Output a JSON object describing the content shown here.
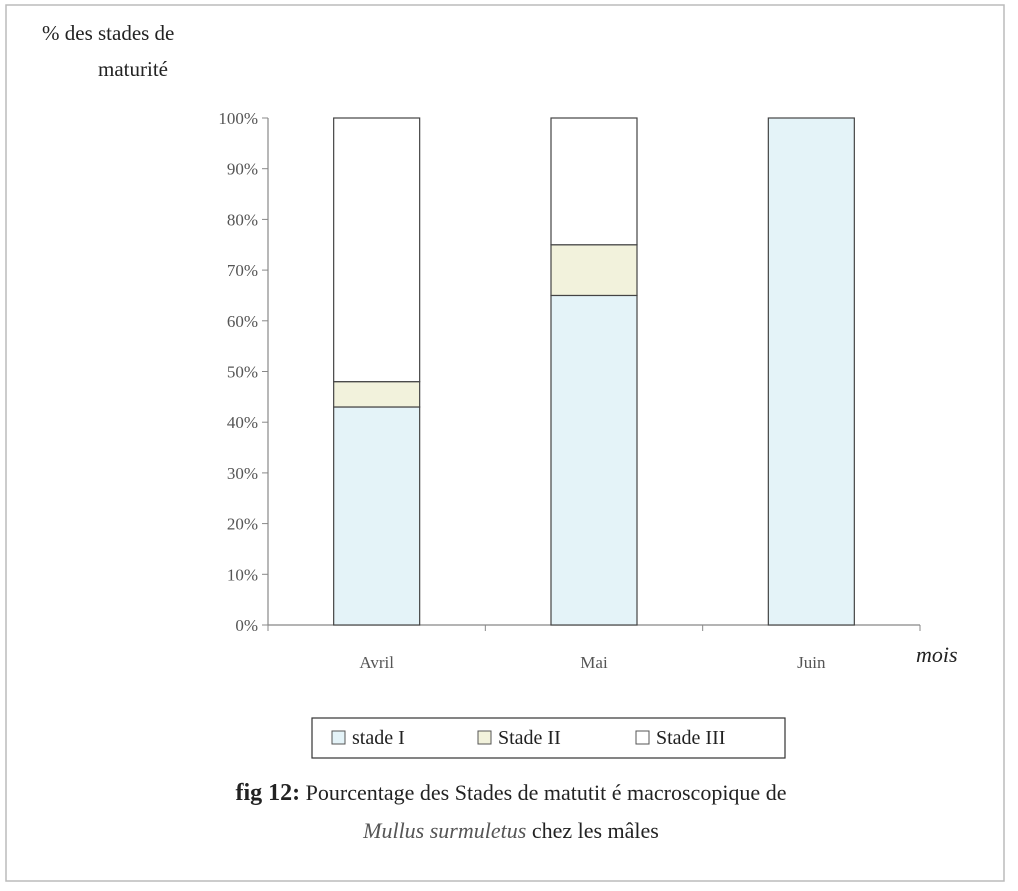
{
  "chart_data": {
    "type": "stacked_bar",
    "ylabel": [
      "% des stades de",
      "maturité"
    ],
    "xlabel": "mois",
    "categories": [
      "Avril",
      "Mai",
      "Juin"
    ],
    "series": [
      {
        "name": "stade I",
        "color": "#e4f3f8",
        "values": [
          43,
          65,
          100
        ]
      },
      {
        "name": "Stade II",
        "color": "#f2f2dc",
        "values": [
          5,
          10,
          0
        ]
      },
      {
        "name": "Stade III",
        "color": "#ffffff",
        "values": [
          52,
          25,
          0
        ]
      }
    ],
    "ylim": [
      0,
      100
    ],
    "yticks": [
      {
        "value": 0,
        "label": "0%"
      },
      {
        "value": 10,
        "label": "10%"
      },
      {
        "value": 20,
        "label": "20%"
      },
      {
        "value": 30,
        "label": "30%"
      },
      {
        "value": 40,
        "label": "40%"
      },
      {
        "value": 50,
        "label": "50%"
      },
      {
        "value": 60,
        "label": "60%"
      },
      {
        "value": 70,
        "label": "70%"
      },
      {
        "value": 80,
        "label": "80%"
      },
      {
        "value": 90,
        "label": "90%"
      },
      {
        "value": 100,
        "label": "100%"
      }
    ],
    "caption": {
      "label": "fig 12:",
      "line1": "Pourcentage des Stades de matutit é macroscopique de",
      "species": "Mullus surmuletus",
      "line2": "chez les mâles"
    }
  }
}
